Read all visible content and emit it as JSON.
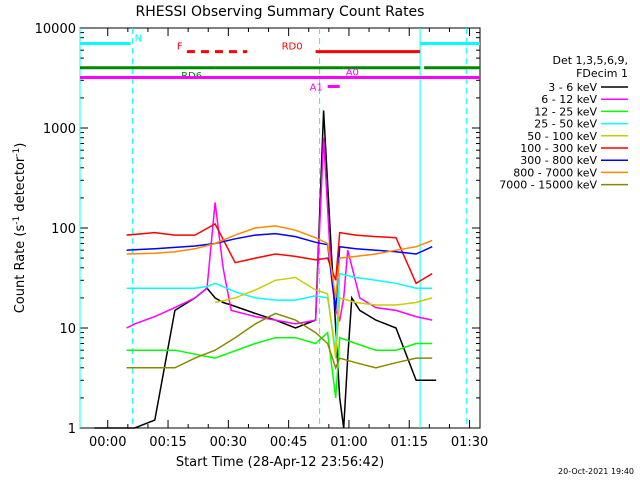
{
  "chart_data": {
    "type": "line",
    "title": "RHESSI Observing Summary Count Rates",
    "xlabel": "Start Time (28-Apr-12 23:56:42)",
    "ylabel_main": "Count Rate (s",
    "ylabel_exp1": "-1",
    "ylabel_mid": " detector",
    "ylabel_exp2": "-1",
    "ylabel_end": ")",
    "y_log": true,
    "xlim": [
      -3.6,
      95.9
    ],
    "ylim": [
      1,
      10000
    ],
    "x_ticks": [
      {
        "pos": 3.3,
        "label": "00:00"
      },
      {
        "pos": 18.3,
        "label": "00:15"
      },
      {
        "pos": 33.3,
        "label": "00:30"
      },
      {
        "pos": 48.3,
        "label": "00:45"
      },
      {
        "pos": 63.3,
        "label": "01:00"
      },
      {
        "pos": 78.3,
        "label": "01:15"
      },
      {
        "pos": 93.3,
        "label": "01:30"
      }
    ],
    "y_ticks": [
      {
        "value": 1,
        "label": "1"
      },
      {
        "value": 10,
        "label": "10"
      },
      {
        "value": 100,
        "label": "100"
      },
      {
        "value": 1000,
        "label": "1000"
      },
      {
        "value": 10000,
        "label": "10000"
      }
    ],
    "legend": {
      "header": [
        "Det 1,3,5,6,9,",
        "FDecim 1"
      ],
      "placement": "right"
    },
    "series": [
      {
        "name": "3 - 6 keV",
        "color": "#000000",
        "x": [
          0,
          10,
          15,
          20,
          25,
          28,
          30,
          32,
          34,
          40,
          45,
          50,
          55,
          57,
          59,
          60,
          61,
          62,
          63,
          64,
          66,
          70,
          75,
          80,
          85
        ],
        "values": [
          1,
          1,
          1.2,
          15,
          20,
          25,
          20,
          18,
          17,
          14,
          12,
          10,
          12,
          1500,
          50,
          10,
          2,
          1,
          5,
          20,
          15,
          12,
          10,
          3,
          3
        ]
      },
      {
        "name": "6 - 12 keV",
        "color": "#ff00ff",
        "x": [
          8,
          10,
          15,
          20,
          25,
          28,
          30,
          32,
          34,
          40,
          45,
          50,
          55,
          57,
          59,
          60,
          61,
          62,
          63,
          66,
          70,
          75,
          80,
          84
        ],
        "values": [
          10,
          11,
          13,
          16,
          20,
          25,
          180,
          40,
          15,
          13,
          12,
          11,
          12,
          800,
          30,
          15,
          12,
          20,
          60,
          20,
          16,
          15,
          13,
          12
        ]
      },
      {
        "name": "12 - 25 keV",
        "color": "#00ff00",
        "x": [
          8,
          20,
          30,
          40,
          45,
          50,
          55,
          58,
          60,
          61,
          65,
          70,
          75,
          80,
          84
        ],
        "values": [
          6,
          6,
          5,
          7,
          8,
          8,
          7,
          9,
          2,
          8,
          7,
          6,
          6,
          7,
          7
        ]
      },
      {
        "name": "25 - 50 keV",
        "color": "#00ffff",
        "x": [
          8,
          15,
          20,
          25,
          28,
          30,
          35,
          40,
          45,
          50,
          55,
          58,
          60,
          61,
          65,
          70,
          75,
          80,
          84
        ],
        "values": [
          25,
          25,
          25,
          25,
          26,
          28,
          23,
          20,
          19,
          19,
          21,
          20,
          6,
          35,
          32,
          30,
          28,
          25,
          25
        ]
      },
      {
        "name": "50 - 100 keV",
        "color": "#cccc00",
        "x": [
          30,
          35,
          40,
          45,
          50,
          55,
          58,
          60,
          61,
          65,
          70,
          75,
          80,
          84
        ],
        "values": [
          18,
          20,
          24,
          30,
          32,
          24,
          22,
          5,
          20,
          18,
          17,
          17,
          18,
          20
        ]
      },
      {
        "name": "100 - 300 keV",
        "color": "#ff0000",
        "x": [
          8,
          15,
          20,
          25,
          30,
          35,
          40,
          45,
          50,
          55,
          58,
          60,
          61,
          65,
          70,
          75,
          80,
          84
        ],
        "values": [
          85,
          90,
          85,
          85,
          110,
          45,
          50,
          55,
          52,
          48,
          50,
          30,
          90,
          85,
          82,
          80,
          28,
          35
        ]
      },
      {
        "name": "300 - 800 keV",
        "color": "#0000ff",
        "x": [
          8,
          15,
          20,
          25,
          30,
          35,
          40,
          45,
          50,
          55,
          58,
          60,
          61,
          65,
          70,
          75,
          80,
          84
        ],
        "values": [
          60,
          62,
          64,
          66,
          70,
          78,
          85,
          88,
          82,
          72,
          68,
          15,
          65,
          62,
          60,
          58,
          55,
          65
        ]
      },
      {
        "name": "800 - 7000 keV",
        "color": "#ff8800",
        "x": [
          8,
          15,
          20,
          25,
          30,
          35,
          40,
          45,
          50,
          55,
          58,
          60,
          61,
          65,
          70,
          75,
          80,
          84
        ],
        "values": [
          55,
          56,
          58,
          62,
          70,
          85,
          100,
          105,
          95,
          80,
          70,
          20,
          50,
          52,
          55,
          60,
          65,
          75
        ]
      },
      {
        "name": "7000 - 15000 keV",
        "color": "#888800",
        "x": [
          8,
          15,
          20,
          25,
          30,
          35,
          40,
          45,
          50,
          55,
          58,
          60,
          61,
          65,
          70,
          75,
          80,
          84
        ],
        "values": [
          4,
          4,
          4,
          5,
          6,
          8,
          11,
          14,
          12,
          9,
          7,
          4,
          5,
          4.5,
          4,
          4.5,
          5,
          5
        ]
      }
    ],
    "flags": [
      {
        "label": "N",
        "color": "#00ffff",
        "segments": [
          [
            -3.6,
            9
          ],
          [
            81,
            95.9
          ]
        ],
        "y": 7000
      },
      {
        "label": "F",
        "color": "#ff0000",
        "dashed": true,
        "segments": [
          [
            23,
            38
          ]
        ],
        "y": 5800
      },
      {
        "label": "RD0",
        "color": "#ff0000",
        "segments": [
          [
            55,
            81
          ]
        ],
        "y": 5800
      },
      {
        "label": "RD6",
        "color": "#008800",
        "segments": [
          [
            -3.6,
            30
          ],
          [
            30,
            62
          ],
          [
            62,
            81
          ],
          [
            82,
            95.9
          ]
        ],
        "y": 4000
      },
      {
        "label": "A0",
        "color": "#ff00ff",
        "segments": [
          [
            -3.6,
            95.9
          ]
        ],
        "y": 3200
      },
      {
        "label": "A1",
        "color": "#ff00ff",
        "segments": [
          [
            58,
            61
          ]
        ],
        "y": 2600
      }
    ],
    "vlines": [
      {
        "x": -3.6,
        "color": "#00ffff",
        "dashed": false
      },
      {
        "x": 9.5,
        "color": "#00ffff",
        "dashed": true
      },
      {
        "x": 56,
        "color": "#00ffff",
        "dashed": true
      },
      {
        "x": 81,
        "color": "#00ffff",
        "dashed": false
      },
      {
        "x": 92.5,
        "color": "#00ffff",
        "dashed": true
      }
    ]
  },
  "footer": {
    "timestamp": "20-Oct-2021 19:40"
  }
}
